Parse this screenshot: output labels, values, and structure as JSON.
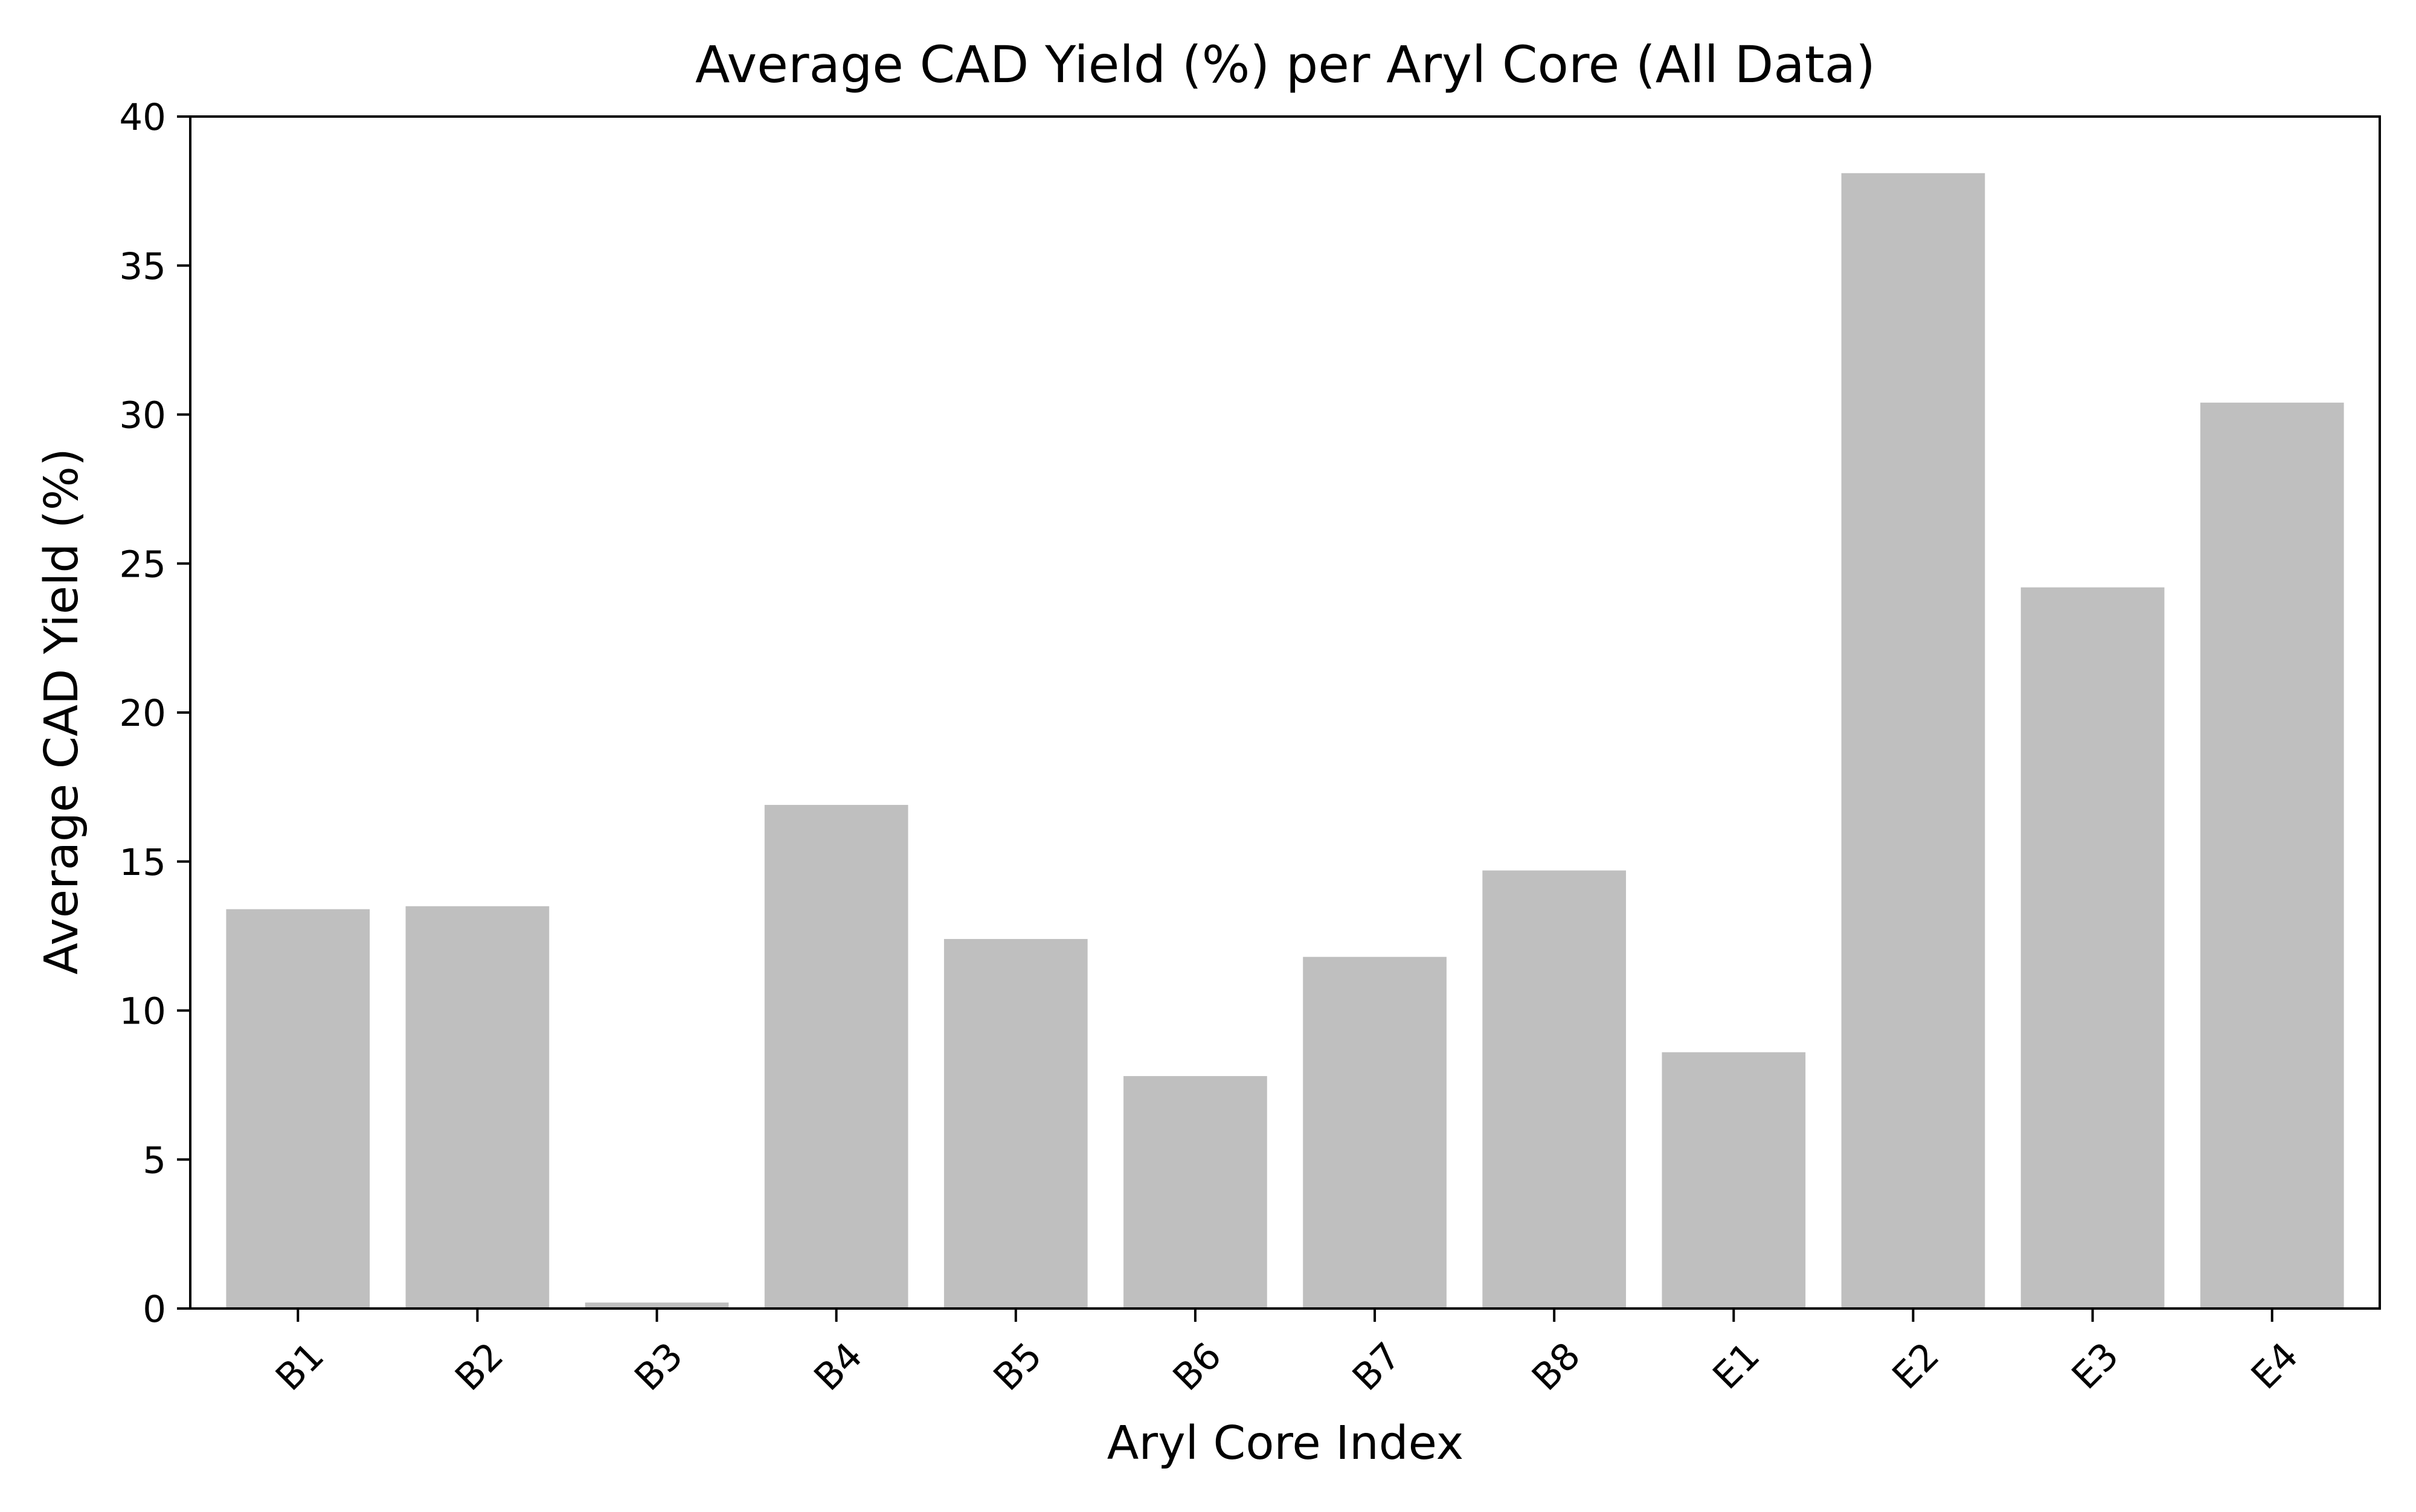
{
  "chart_data": {
    "type": "bar",
    "title": "Average CAD Yield (%) per Aryl Core (All Data)",
    "xlabel": "Aryl Core Index",
    "ylabel": "Average CAD Yield (%)",
    "categories": [
      "B1",
      "B2",
      "B3",
      "B4",
      "B5",
      "B6",
      "B7",
      "B8",
      "E1",
      "E2",
      "E3",
      "E4"
    ],
    "values": [
      13.4,
      13.5,
      0.2,
      16.9,
      12.4,
      7.8,
      11.8,
      14.7,
      8.6,
      38.1,
      24.2,
      30.4
    ],
    "ylim": [
      0,
      40
    ],
    "yticks": [
      0,
      5,
      10,
      15,
      20,
      25,
      30,
      35,
      40
    ],
    "bar_color": "#bfbfbf",
    "grid": false,
    "legend": "none"
  }
}
